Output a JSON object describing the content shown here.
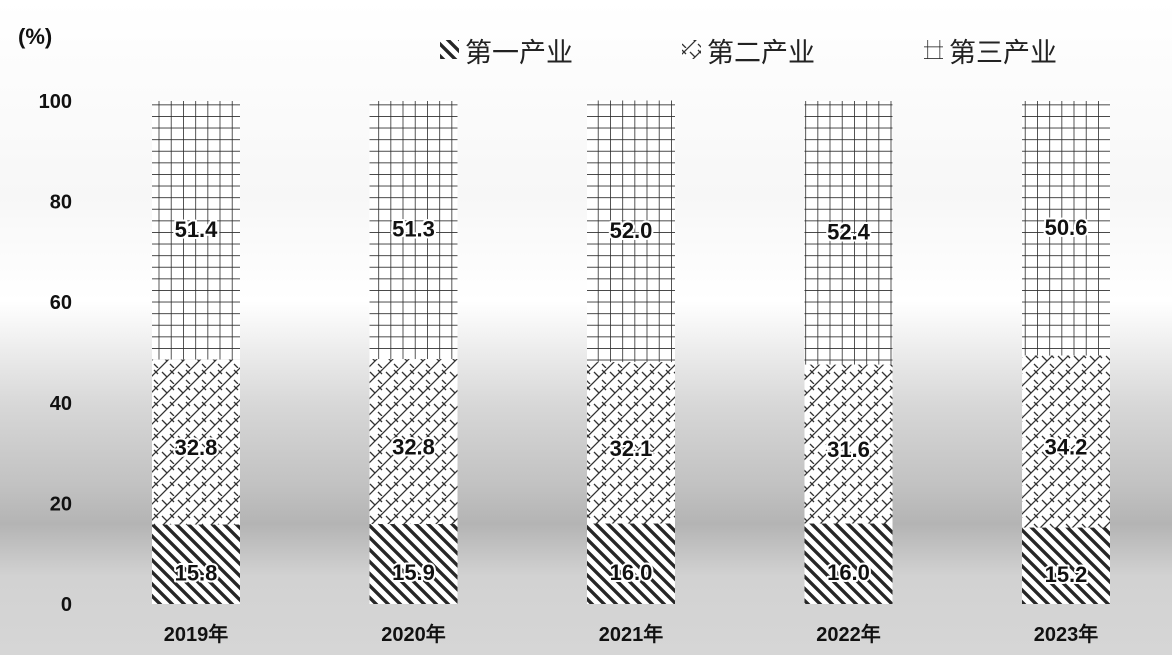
{
  "chart_data": {
    "type": "bar",
    "stacked": true,
    "categories": [
      "2019年",
      "2020年",
      "2021年",
      "2022年",
      "2023年"
    ],
    "series": [
      {
        "name": "第一产业",
        "values": [
          15.8,
          15.9,
          16.0,
          16.0,
          15.2
        ],
        "pattern": "diagonal-stripes"
      },
      {
        "name": "第二产业",
        "values": [
          32.8,
          32.8,
          32.1,
          31.6,
          34.2
        ],
        "pattern": "zigzag"
      },
      {
        "name": "第三产业",
        "values": [
          51.4,
          51.3,
          52.0,
          52.4,
          50.6
        ],
        "pattern": "grid"
      }
    ],
    "y_unit": "(%)",
    "ylim": [
      0,
      100
    ],
    "yticks": [
      0,
      20,
      40,
      60,
      80,
      100
    ],
    "legend_position": "top-right",
    "grid": false,
    "colors": {
      "bar_pattern": "#2b2b2b",
      "bar_fill": "#ffffff",
      "text": "#111111"
    }
  }
}
